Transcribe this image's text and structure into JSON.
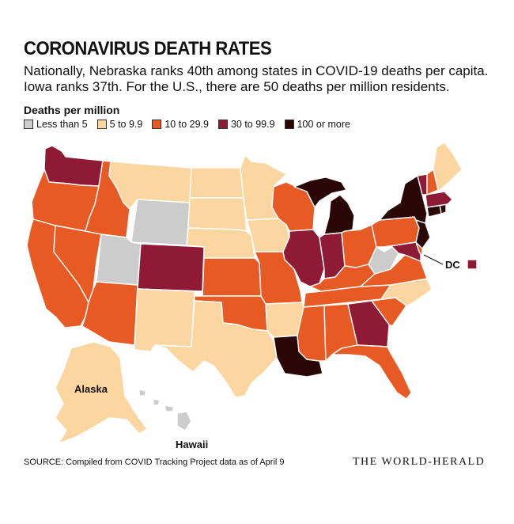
{
  "title": "CORONAVIRUS DEATH RATES",
  "subtitle": "Nationally, Nebraska ranks 40th among states in COVID-19 deaths per capita. Iowa ranks 37th. For the U.S., there are 50 deaths per million residents.",
  "legend": {
    "title": "Deaths per million",
    "items": [
      {
        "label": "Less than 5",
        "color": "#cccccc"
      },
      {
        "label": "5 to 9.9",
        "color": "#fbd6a0"
      },
      {
        "label": "10 to 29.9",
        "color": "#e85a23"
      },
      {
        "label": "30 to 99.9",
        "color": "#8e1a35"
      },
      {
        "label": "100 or more",
        "color": "#2a0606"
      }
    ]
  },
  "labels": {
    "alaska": "Alaska",
    "hawaii": "Hawaii",
    "dc": "DC"
  },
  "categories_by_state": {
    "Less than 5": [
      "UT",
      "WY",
      "WV",
      "HI"
    ],
    "5 to 9.9": [
      "MT",
      "ND",
      "SD",
      "NE",
      "MN",
      "IA",
      "NM",
      "TX",
      "AR",
      "NC",
      "ME",
      "AK"
    ],
    "10 to 29.9": [
      "OR",
      "CA",
      "NV",
      "ID",
      "AZ",
      "KS",
      "OK",
      "MO",
      "WI",
      "OH",
      "KY",
      "TN",
      "MS",
      "AL",
      "SC",
      "FL",
      "VA",
      "PA",
      "NH",
      "DE"
    ],
    "30 to 99.9": [
      "WA",
      "CO",
      "IL",
      "IN",
      "GA",
      "VT",
      "MA",
      "MD",
      "DC"
    ],
    "100 or more": [
      "MI",
      "LA",
      "NY",
      "NJ",
      "CT",
      "RI"
    ]
  },
  "source": "SOURCE: Compiled from COVID Tracking Project data as of April 9",
  "brand": "THE WORLD-HERALD"
}
